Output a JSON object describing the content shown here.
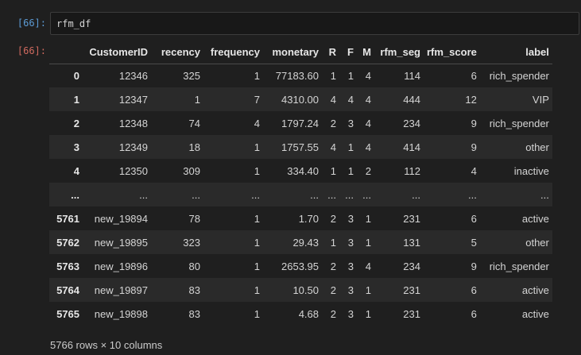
{
  "cell": {
    "input_prompt": "[66]:",
    "output_prompt": "[66]:",
    "code": "rfm_df"
  },
  "table": {
    "columns": [
      "",
      "CustomerID",
      "recency",
      "frequency",
      "monetary",
      "R",
      "F",
      "M",
      "rfm_seg",
      "rfm_score",
      "label"
    ],
    "rows": [
      [
        "0",
        "12346",
        "325",
        "1",
        "77183.60",
        "1",
        "1",
        "4",
        "114",
        "6",
        "rich_spender"
      ],
      [
        "1",
        "12347",
        "1",
        "7",
        "4310.00",
        "4",
        "4",
        "4",
        "444",
        "12",
        "VIP"
      ],
      [
        "2",
        "12348",
        "74",
        "4",
        "1797.24",
        "2",
        "3",
        "4",
        "234",
        "9",
        "rich_spender"
      ],
      [
        "3",
        "12349",
        "18",
        "1",
        "1757.55",
        "4",
        "1",
        "4",
        "414",
        "9",
        "other"
      ],
      [
        "4",
        "12350",
        "309",
        "1",
        "334.40",
        "1",
        "1",
        "2",
        "112",
        "4",
        "inactive"
      ],
      [
        "...",
        "...",
        "...",
        "...",
        "...",
        "...",
        "...",
        "...",
        "...",
        "...",
        "..."
      ],
      [
        "5761",
        "new_19894",
        "78",
        "1",
        "1.70",
        "2",
        "3",
        "1",
        "231",
        "6",
        "active"
      ],
      [
        "5762",
        "new_19895",
        "323",
        "1",
        "29.43",
        "1",
        "3",
        "1",
        "131",
        "5",
        "other"
      ],
      [
        "5763",
        "new_19896",
        "80",
        "1",
        "2653.95",
        "2",
        "3",
        "4",
        "234",
        "9",
        "rich_spender"
      ],
      [
        "5764",
        "new_19897",
        "83",
        "1",
        "10.50",
        "2",
        "3",
        "1",
        "231",
        "6",
        "active"
      ],
      [
        "5765",
        "new_19898",
        "83",
        "1",
        "4.68",
        "2",
        "3",
        "1",
        "231",
        "6",
        "active"
      ]
    ]
  },
  "shape_note": "5766 rows × 10 columns"
}
